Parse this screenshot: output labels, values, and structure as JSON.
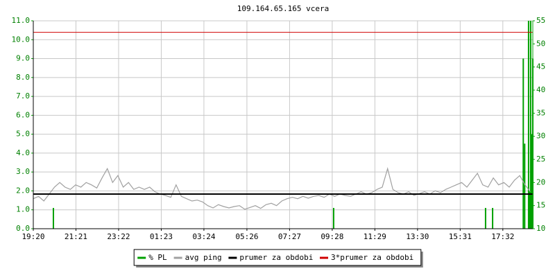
{
  "chart_data": {
    "type": "line",
    "title": "109.164.65.165 vcera",
    "xlim": [
      0,
      1417
    ],
    "xticks": [
      {
        "value": 0,
        "label": "19:20"
      },
      {
        "value": 121,
        "label": "21:21"
      },
      {
        "value": 242,
        "label": "23:22"
      },
      {
        "value": 363,
        "label": "01:23"
      },
      {
        "value": 484,
        "label": "03:24"
      },
      {
        "value": 606,
        "label": "05:26"
      },
      {
        "value": 727,
        "label": "07:27"
      },
      {
        "value": 848,
        "label": "09:28"
      },
      {
        "value": 969,
        "label": "11:29"
      },
      {
        "value": 1090,
        "label": "13:30"
      },
      {
        "value": 1211,
        "label": "15:31"
      },
      {
        "value": 1332,
        "label": "17:32"
      }
    ],
    "ylim": [
      0,
      11
    ],
    "yticks": [
      {
        "value": 0,
        "label": "0.0"
      },
      {
        "value": 1,
        "label": "1.0"
      },
      {
        "value": 2,
        "label": "2.0"
      },
      {
        "value": 3,
        "label": "3.0"
      },
      {
        "value": 4,
        "label": "4.0"
      },
      {
        "value": 5,
        "label": "5.0"
      },
      {
        "value": 6,
        "label": "6.0"
      },
      {
        "value": 7,
        "label": "7.0"
      },
      {
        "value": 8,
        "label": "8.0"
      },
      {
        "value": 9,
        "label": "9.0"
      },
      {
        "value": 10,
        "label": "10.0"
      },
      {
        "value": 11,
        "label": "11.0"
      }
    ],
    "y2lim": [
      10,
      55
    ],
    "y2ticks": [
      10,
      15,
      20,
      25,
      30,
      35,
      40,
      45,
      50,
      55
    ],
    "grid": true,
    "series": [
      {
        "name": "% PL",
        "color": "#00a000",
        "style": "spikes",
        "x": [
          57,
          852,
          1283,
          1303,
          1390,
          1394,
          1405,
          1408,
          1411,
          1414,
          1417
        ],
        "values": [
          1.1,
          1.1,
          1.1,
          1.1,
          9,
          4.5,
          11,
          2,
          11,
          5,
          9
        ]
      },
      {
        "name": "avg ping",
        "color": "#a0a0a0",
        "axis": "y2",
        "style": "line",
        "x": [
          0,
          15,
          30,
          45,
          60,
          75,
          90,
          105,
          120,
          135,
          150,
          165,
          180,
          195,
          210,
          225,
          240,
          255,
          270,
          285,
          300,
          315,
          330,
          345,
          360,
          375,
          390,
          405,
          420,
          435,
          450,
          465,
          480,
          495,
          510,
          525,
          540,
          555,
          570,
          585,
          600,
          615,
          630,
          645,
          660,
          675,
          690,
          705,
          720,
          735,
          750,
          765,
          780,
          795,
          810,
          825,
          840,
          855,
          870,
          885,
          900,
          915,
          930,
          945,
          960,
          975,
          990,
          1005,
          1020,
          1035,
          1050,
          1065,
          1080,
          1095,
          1110,
          1125,
          1140,
          1155,
          1170,
          1185,
          1200,
          1215,
          1230,
          1245,
          1260,
          1275,
          1290,
          1305,
          1320,
          1335,
          1350,
          1365,
          1380,
          1395,
          1410
        ],
        "values": [
          16.5,
          17,
          16,
          17.5,
          19,
          20,
          19,
          18.5,
          19.5,
          19,
          20,
          19.5,
          18.8,
          21,
          23,
          20,
          21.5,
          19,
          20,
          18.5,
          19,
          18.5,
          19,
          18,
          17.5,
          17.2,
          16.8,
          19.5,
          17,
          16.5,
          16,
          16.2,
          15.8,
          15,
          14.5,
          15.2,
          14.8,
          14.5,
          14.8,
          15,
          14.2,
          14.6,
          15,
          14.4,
          15.2,
          15.5,
          15,
          16,
          16.5,
          16.8,
          16.5,
          17,
          16.6,
          17,
          17.2,
          16.8,
          17.5,
          17,
          17.5,
          17.2,
          17,
          17.5,
          18,
          17.5,
          17.8,
          18.5,
          19,
          23,
          18.5,
          17.8,
          17.5,
          18,
          17.2,
          17.6,
          18,
          17.5,
          18.2,
          17.8,
          18.5,
          19,
          19.5,
          20,
          19,
          20.5,
          22,
          19.5,
          19,
          21,
          19.5,
          20,
          19,
          20.5,
          21.5,
          19.5,
          18
        ]
      }
    ],
    "reference_lines": [
      {
        "name": "prumer za obdobi",
        "color": "#000000",
        "axis": "y2",
        "value": 17.5
      },
      {
        "name": "3*prumer za obdobi",
        "color": "#d00000",
        "axis": "y2",
        "value": 52.5
      }
    ]
  }
}
